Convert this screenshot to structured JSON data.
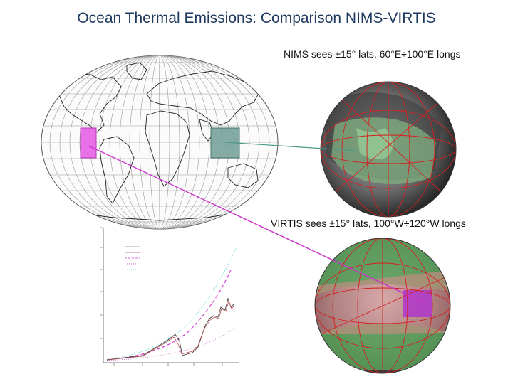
{
  "slide": {
    "title": "Ocean Thermal Emissions: Comparison NIMS-VIRTIS"
  },
  "captions": {
    "nims": "NIMS sees ±15° lats, 60°E÷100°E longs",
    "virtis": "VIRTIS sees ±15° lats, 100°W÷120°W longs"
  },
  "colors": {
    "title": "#1f3a5f",
    "rule": "#2b5b8a",
    "nims_region": "#7fa8a0",
    "virtis_region": "#e86ae8",
    "nims_connector": "#4a9a8a",
    "virtis_connector": "#cc33cc",
    "grid_red": "#d62020"
  }
}
